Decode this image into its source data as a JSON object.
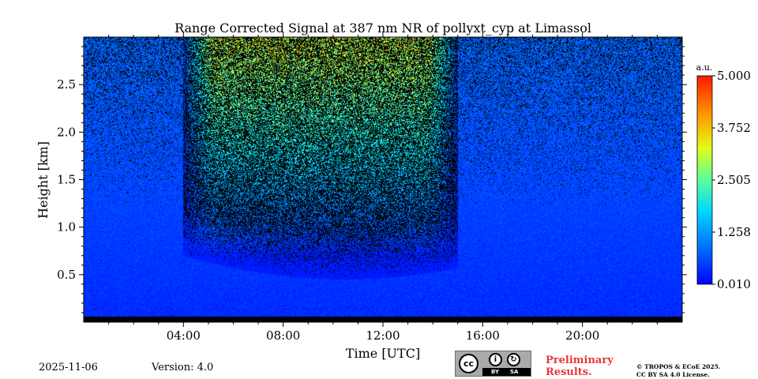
{
  "chart_data": {
    "type": "heatmap",
    "title": "Range Corrected Signal at 387 nm NR of pollyxt_cyp at Limassol",
    "xlabel": "Time [UTC]",
    "ylabel": "Height [km]",
    "x_unit_hours": true,
    "xlim": [
      0,
      24
    ],
    "ylim": [
      0,
      3
    ],
    "x_ticks": [
      {
        "value": 4,
        "label": "04:00"
      },
      {
        "value": 8,
        "label": "08:00"
      },
      {
        "value": 12,
        "label": "12:00"
      },
      {
        "value": 16,
        "label": "16:00"
      },
      {
        "value": 20,
        "label": "20:00"
      }
    ],
    "y_ticks": [
      {
        "value": 0.5,
        "label": "0.5"
      },
      {
        "value": 1.0,
        "label": "1.0"
      },
      {
        "value": 1.5,
        "label": "1.5"
      },
      {
        "value": 2.0,
        "label": "2.0"
      },
      {
        "value": 2.5,
        "label": "2.5"
      }
    ],
    "colorbar": {
      "unit": "a.u.",
      "min": 0.01,
      "max": 5.0,
      "colormap": "jet",
      "ticks": [
        {
          "value": 0.01,
          "label": "0.010"
        },
        {
          "value": 1.258,
          "label": "1.258"
        },
        {
          "value": 2.505,
          "label": "2.505"
        },
        {
          "value": 3.752,
          "label": "3.752"
        },
        {
          "value": 5.0,
          "label": "5.000"
        }
      ]
    },
    "signal_features": {
      "enhanced_period_hours": [
        4,
        15
      ],
      "enhanced_max_value": 2.6,
      "low_signal_height_km": [
        0,
        0.06
      ]
    }
  },
  "footer": {
    "date": "2025-11-06",
    "version": "Version: 4.0",
    "preliminary_line1": "Preliminary",
    "preliminary_line2": "Results.",
    "copyright_line1": "© TROPOS & ECoE 2025.",
    "copyright_line2": "CC BY SA 4.0 License.",
    "license_badge": {
      "cc": "cc",
      "by": "BY",
      "sa": "SA"
    }
  },
  "colors": {
    "background_low": "#0b45e0",
    "noise": "#000000"
  }
}
